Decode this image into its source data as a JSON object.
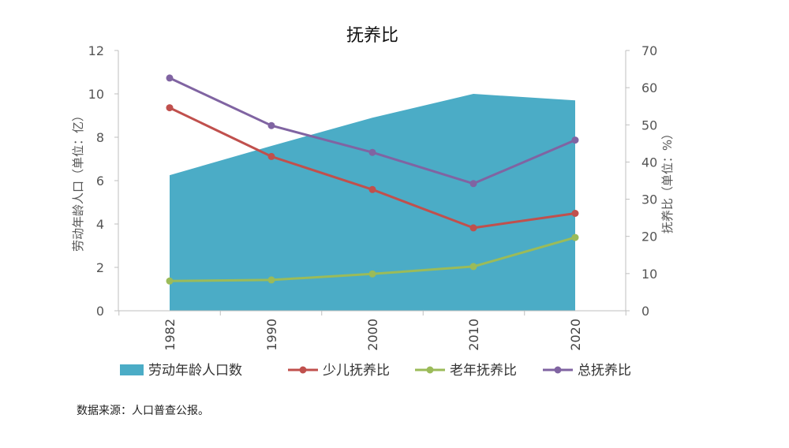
{
  "chart_data": {
    "type": "line",
    "title": "抚养比",
    "categories": [
      "1982",
      "1990",
      "2000",
      "2010",
      "2020"
    ],
    "left_axis": {
      "label": "劳动年龄人口（单位：亿）",
      "range": [
        0,
        12
      ],
      "ticks": [
        0,
        2,
        4,
        6,
        8,
        10,
        12
      ]
    },
    "right_axis": {
      "label": "抚养比（单位：%）",
      "range": [
        0,
        70
      ],
      "ticks": [
        0,
        10,
        20,
        30,
        40,
        50,
        60,
        70
      ]
    },
    "grid": false,
    "legend_position": "bottom",
    "series": [
      {
        "name": "劳动年龄人口数",
        "type": "area",
        "axis": "left",
        "color": "#4BACC6",
        "values": [
          6.25,
          7.6,
          8.9,
          10.0,
          9.7
        ]
      },
      {
        "name": "少儿抚养比",
        "type": "line",
        "axis": "right",
        "color": "#C0504D",
        "values": [
          54.6,
          41.5,
          32.6,
          22.3,
          26.2
        ]
      },
      {
        "name": "老年抚养比",
        "type": "line",
        "axis": "right",
        "color": "#9BBB59",
        "values": [
          8.0,
          8.3,
          9.9,
          11.9,
          19.7
        ]
      },
      {
        "name": "总抚养比",
        "type": "line",
        "axis": "right",
        "color": "#8064A2",
        "values": [
          62.6,
          49.8,
          42.6,
          34.2,
          45.9
        ]
      }
    ]
  },
  "source": "数据来源：人口普查公报。"
}
